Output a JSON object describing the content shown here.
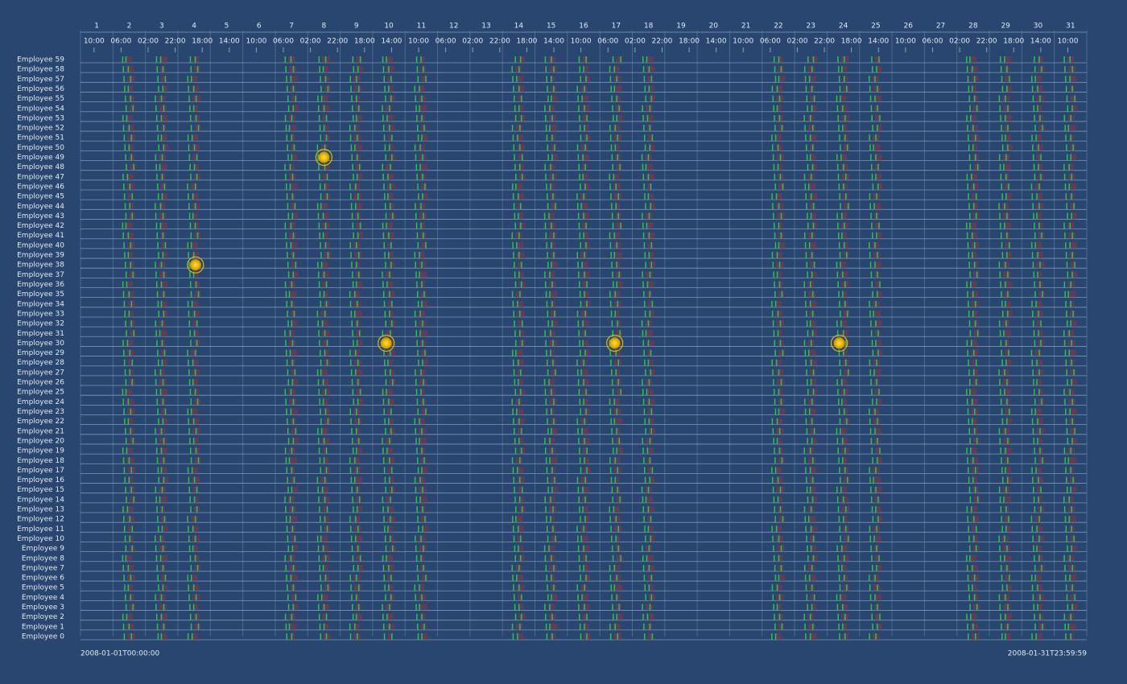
{
  "chart_data": {
    "type": "timeline",
    "employees": [
      "Employee 59",
      "Employee 58",
      "Employee 57",
      "Employee 56",
      "Employee 55",
      "Employee 54",
      "Employee 53",
      "Employee 52",
      "Employee 51",
      "Employee 50",
      "Employee 49",
      "Employee 48",
      "Employee 47",
      "Employee 46",
      "Employee 45",
      "Employee 44",
      "Employee 43",
      "Employee 42",
      "Employee 41",
      "Employee 40",
      "Employee 39",
      "Employee 38",
      "Employee 37",
      "Employee 36",
      "Employee 35",
      "Employee 34",
      "Employee 33",
      "Employee 32",
      "Employee 31",
      "Employee 30",
      "Employee 29",
      "Employee 28",
      "Employee 27",
      "Employee 26",
      "Employee 25",
      "Employee 24",
      "Employee 23",
      "Employee 22",
      "Employee 21",
      "Employee 20",
      "Employee 19",
      "Employee 18",
      "Employee 17",
      "Employee 16",
      "Employee 15",
      "Employee 14",
      "Employee 13",
      "Employee 12",
      "Employee 11",
      "Employee 10",
      "Employee 9",
      "Employee 8",
      "Employee 7",
      "Employee 6",
      "Employee 5",
      "Employee 4",
      "Employee 3",
      "Employee 2",
      "Employee 1",
      "Employee 0"
    ],
    "days": [
      1,
      2,
      3,
      4,
      5,
      6,
      7,
      8,
      9,
      10,
      11,
      12,
      13,
      14,
      15,
      16,
      17,
      18,
      19,
      20,
      21,
      22,
      23,
      24,
      25,
      26,
      27,
      28,
      29,
      30,
      31
    ],
    "xlim": [
      0,
      744
    ],
    "xticks": [
      {
        "value": 10,
        "label": "10:00"
      },
      {
        "value": 30,
        "label": "06:00"
      },
      {
        "value": 50,
        "label": "02:00"
      },
      {
        "value": 70,
        "label": "22:00"
      },
      {
        "value": 90,
        "label": "18:00"
      },
      {
        "value": 110,
        "label": "14:00"
      },
      {
        "value": 130,
        "label": "10:00"
      },
      {
        "value": 150,
        "label": "06:00"
      },
      {
        "value": 170,
        "label": "02:00"
      },
      {
        "value": 190,
        "label": "22:00"
      },
      {
        "value": 210,
        "label": "18:00"
      },
      {
        "value": 230,
        "label": "14:00"
      },
      {
        "value": 250,
        "label": "10:00"
      },
      {
        "value": 270,
        "label": "06:00"
      },
      {
        "value": 290,
        "label": "02:00"
      },
      {
        "value": 310,
        "label": "22:00"
      },
      {
        "value": 330,
        "label": "18:00"
      },
      {
        "value": 350,
        "label": "14:00"
      },
      {
        "value": 370,
        "label": "10:00"
      },
      {
        "value": 390,
        "label": "06:00"
      },
      {
        "value": 410,
        "label": "02:00"
      },
      {
        "value": 430,
        "label": "22:00"
      },
      {
        "value": 450,
        "label": "18:00"
      },
      {
        "value": 470,
        "label": "14:00"
      },
      {
        "value": 490,
        "label": "10:00"
      },
      {
        "value": 510,
        "label": "06:00"
      },
      {
        "value": 530,
        "label": "02:00"
      },
      {
        "value": 550,
        "label": "22:00"
      },
      {
        "value": 570,
        "label": "18:00"
      },
      {
        "value": 590,
        "label": "14:00"
      },
      {
        "value": 610,
        "label": "10:00"
      },
      {
        "value": 630,
        "label": "06:00"
      },
      {
        "value": 650,
        "label": "02:00"
      },
      {
        "value": 670,
        "label": "22:00"
      },
      {
        "value": 690,
        "label": "18:00"
      },
      {
        "value": 710,
        "label": "14:00"
      },
      {
        "value": 730,
        "label": "10:00"
      }
    ],
    "start_label": "2008-01-01T00:00:00",
    "end_label": "2008-01-31T23:59:59",
    "activity_days": [
      2,
      3,
      4,
      7,
      8,
      9,
      10,
      11,
      14,
      15,
      16,
      17,
      18,
      22,
      23,
      24,
      25,
      28,
      29,
      30,
      31
    ],
    "activity_color": "#2fbf4f",
    "secondary_color": "#8a3648",
    "highlight_color": "#f2c500",
    "highlights": [
      {
        "employee": "Employee 49",
        "hour": 180
      },
      {
        "employee": "Employee 38",
        "hour": 85
      },
      {
        "employee": "Employee 30",
        "hour": 226
      },
      {
        "employee": "Employee 30",
        "hour": 395
      },
      {
        "employee": "Employee 30",
        "hour": 561
      }
    ]
  }
}
